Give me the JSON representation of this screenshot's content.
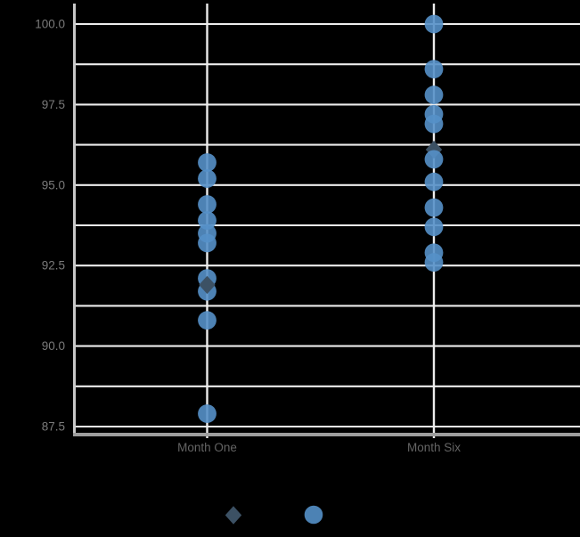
{
  "canvas": {
    "background_color": "#000000",
    "gridline_color": "#ededed",
    "y_spine_color": "#c8c8c8",
    "x_spine_color": "#9e9e9e",
    "y_tick_label_color": "#7a7a7a",
    "x_tick_label_color": "#646464"
  },
  "chart_data": {
    "type": "scatter",
    "variant": "strip-plot",
    "title": "",
    "xlabel": "",
    "ylabel": "",
    "categories": [
      "Month One",
      "Month Six"
    ],
    "y_axis": {
      "tick_values": [
        100.0,
        97.5,
        95.0,
        92.5,
        90.0,
        87.5
      ],
      "tick_labels": [
        "100.0",
        "97.5",
        "95.0",
        "92.5",
        "90.0",
        "87.5"
      ],
      "minor_gridline_step": 1.25,
      "ylim": [
        87.3,
        100.6
      ],
      "grid": "on"
    },
    "series": [
      {
        "name": "observations",
        "marker": "circle",
        "color": "#5590C8",
        "opacity": 0.9,
        "points": [
          {
            "category": "Month One",
            "values": [
              95.7,
              95.2,
              94.4,
              93.9,
              93.5,
              93.2,
              92.1,
              91.7,
              90.8,
              87.9
            ]
          },
          {
            "category": "Month Six",
            "values": [
              100.0,
              98.6,
              97.8,
              97.2,
              96.9,
              95.8,
              95.1,
              94.3,
              93.7,
              92.9,
              92.6
            ]
          }
        ]
      },
      {
        "name": "summary-diamond",
        "marker": "diamond",
        "color": "#3C5164",
        "opacity": 1.0,
        "points": [
          {
            "category": "Month One",
            "value": 91.9,
            "on_top": true
          },
          {
            "category": "Month Six",
            "value": 96.1,
            "on_top": false
          }
        ]
      }
    ],
    "legend": {
      "position": "bottom-center",
      "entries": [
        {
          "marker": "diamond",
          "color": "#3C5164",
          "label": ""
        },
        {
          "marker": "circle",
          "color": "#4C82B4",
          "label": ""
        }
      ]
    }
  }
}
